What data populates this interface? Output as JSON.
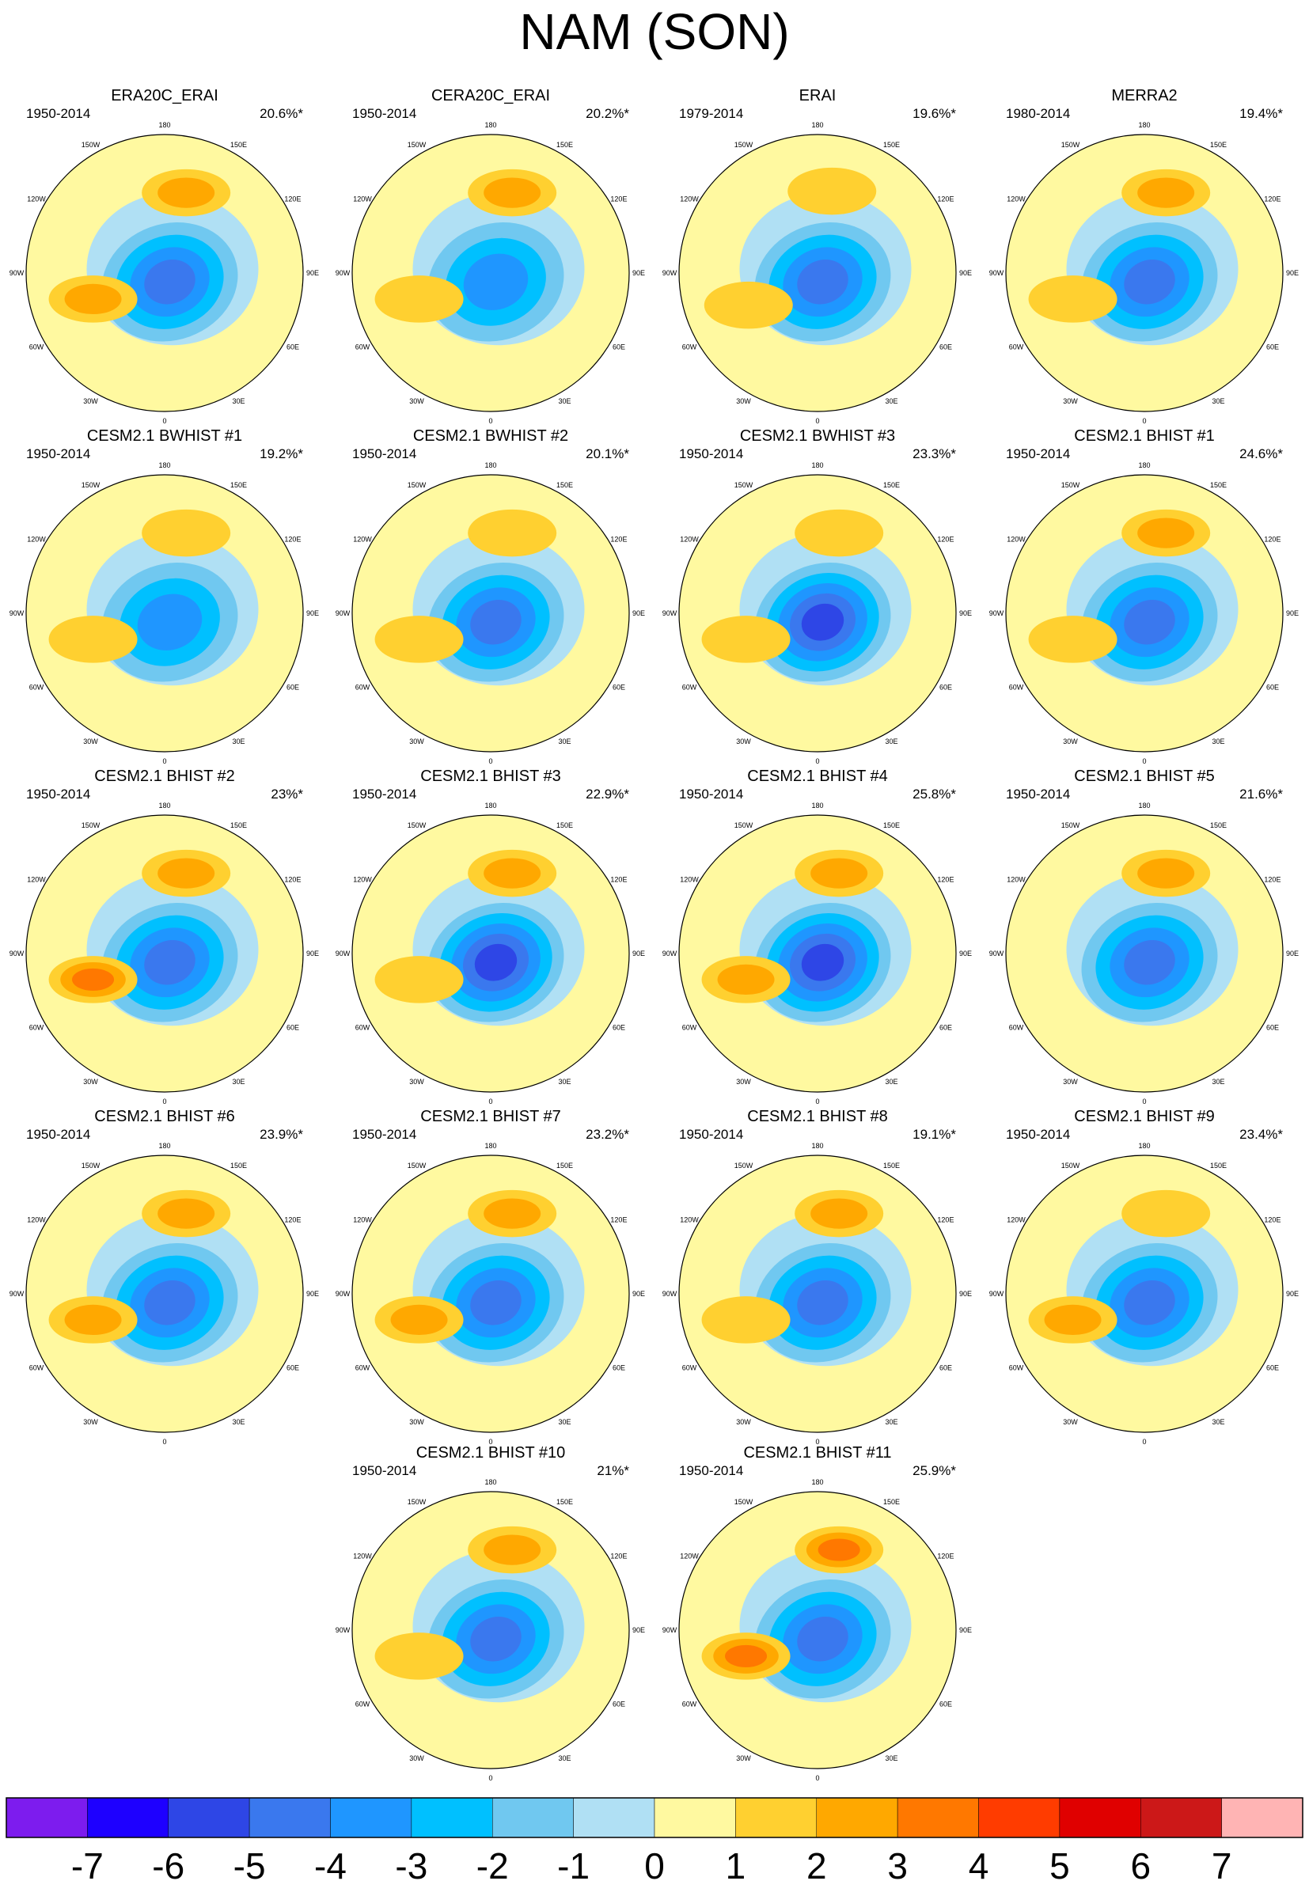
{
  "title": "NAM (SON)",
  "chart_data": {
    "type": "polar-contour-panels",
    "title": "NAM (SON)",
    "longitude_labels": [
      "180",
      "150E",
      "120E",
      "90E",
      "60E",
      "30E",
      "0",
      "30W",
      "60W",
      "90W",
      "120W",
      "150W"
    ],
    "panels": [
      {
        "name": "ERA20C_ERAI",
        "period": "1950-2014",
        "variance": "20.6%*",
        "centers": [
          {
            "lon": 150,
            "r": 0.62,
            "v": -4
          },
          {
            "lon": -110,
            "r": 0.55,
            "v": 2
          },
          {
            "lon": 15,
            "r": 0.6,
            "v": 2
          }
        ]
      },
      {
        "name": "CERA20C_ERAI",
        "period": "1950-2014",
        "variance": "20.2%*",
        "centers": [
          {
            "lon": 150,
            "r": 0.62,
            "v": -3
          },
          {
            "lon": -110,
            "r": 0.55,
            "v": 1
          },
          {
            "lon": 15,
            "r": 0.6,
            "v": 2
          }
        ]
      },
      {
        "name": "ERAI",
        "period": "1979-2014",
        "variance": "19.6%*",
        "centers": [
          {
            "lon": 150,
            "r": 0.62,
            "v": -4
          },
          {
            "lon": -115,
            "r": 0.55,
            "v": 1
          },
          {
            "lon": 10,
            "r": 0.6,
            "v": 1
          }
        ]
      },
      {
        "name": "MERRA2",
        "period": "1980-2014",
        "variance": "19.4%*",
        "centers": [
          {
            "lon": 150,
            "r": 0.62,
            "v": -4
          },
          {
            "lon": -110,
            "r": 0.55,
            "v": 1
          },
          {
            "lon": 15,
            "r": 0.6,
            "v": 2
          }
        ]
      },
      {
        "name": "CESM2.1 BWHIST #1",
        "period": "1950-2014",
        "variance": "19.2%*",
        "centers": [
          {
            "lon": 150,
            "r": 0.62,
            "v": -3
          },
          {
            "lon": -110,
            "r": 0.55,
            "v": 1
          },
          {
            "lon": 15,
            "r": 0.6,
            "v": 1
          }
        ]
      },
      {
        "name": "CESM2.1 BWHIST #2",
        "period": "1950-2014",
        "variance": "20.1%*",
        "centers": [
          {
            "lon": 150,
            "r": 0.62,
            "v": -4
          },
          {
            "lon": -110,
            "r": 0.55,
            "v": 1
          },
          {
            "lon": 15,
            "r": 0.6,
            "v": 1
          }
        ]
      },
      {
        "name": "CESM2.1 BWHIST #3",
        "period": "1950-2014",
        "variance": "23.3%*",
        "centers": [
          {
            "lon": 150,
            "r": 0.62,
            "v": -5
          },
          {
            "lon": -110,
            "r": 0.55,
            "v": 1
          },
          {
            "lon": 15,
            "r": 0.6,
            "v": 1
          }
        ]
      },
      {
        "name": "CESM2.1 BHIST #1",
        "period": "1950-2014",
        "variance": "24.6%*",
        "centers": [
          {
            "lon": 150,
            "r": 0.62,
            "v": -4
          },
          {
            "lon": -110,
            "r": 0.55,
            "v": 1
          },
          {
            "lon": 15,
            "r": 0.6,
            "v": 2
          }
        ]
      },
      {
        "name": "CESM2.1 BHIST #2",
        "period": "1950-2014",
        "variance": "23%*",
        "centers": [
          {
            "lon": 150,
            "r": 0.62,
            "v": -4
          },
          {
            "lon": -110,
            "r": 0.55,
            "v": 3
          },
          {
            "lon": 15,
            "r": 0.6,
            "v": 2
          }
        ]
      },
      {
        "name": "CESM2.1 BHIST #3",
        "period": "1950-2014",
        "variance": "22.9%*",
        "centers": [
          {
            "lon": 150,
            "r": 0.62,
            "v": -5
          },
          {
            "lon": -110,
            "r": 0.55,
            "v": 1
          },
          {
            "lon": 15,
            "r": 0.6,
            "v": 2
          }
        ]
      },
      {
        "name": "CESM2.1 BHIST #4",
        "period": "1950-2014",
        "variance": "25.8%*",
        "centers": [
          {
            "lon": 150,
            "r": 0.62,
            "v": -5
          },
          {
            "lon": -110,
            "r": 0.55,
            "v": 2
          },
          {
            "lon": 15,
            "r": 0.6,
            "v": 2
          }
        ]
      },
      {
        "name": "CESM2.1 BHIST #5",
        "period": "1950-2014",
        "variance": "21.6%*",
        "centers": [
          {
            "lon": 150,
            "r": 0.62,
            "v": -4
          },
          {
            "lon": -110,
            "r": 0.55,
            "v": 0
          },
          {
            "lon": 15,
            "r": 0.6,
            "v": 2
          }
        ]
      },
      {
        "name": "CESM2.1 BHIST #6",
        "period": "1950-2014",
        "variance": "23.9%*",
        "centers": [
          {
            "lon": 150,
            "r": 0.62,
            "v": -4
          },
          {
            "lon": -110,
            "r": 0.55,
            "v": 2
          },
          {
            "lon": 15,
            "r": 0.6,
            "v": 2
          }
        ]
      },
      {
        "name": "CESM2.1 BHIST #7",
        "period": "1950-2014",
        "variance": "23.2%*",
        "centers": [
          {
            "lon": 150,
            "r": 0.62,
            "v": -4
          },
          {
            "lon": -110,
            "r": 0.55,
            "v": 2
          },
          {
            "lon": 15,
            "r": 0.6,
            "v": 2
          }
        ]
      },
      {
        "name": "CESM2.1 BHIST #8",
        "period": "1950-2014",
        "variance": "19.1%*",
        "centers": [
          {
            "lon": 150,
            "r": 0.62,
            "v": -4
          },
          {
            "lon": -110,
            "r": 0.55,
            "v": 1
          },
          {
            "lon": 15,
            "r": 0.6,
            "v": 2
          }
        ]
      },
      {
        "name": "CESM2.1 BHIST #9",
        "period": "1950-2014",
        "variance": "23.4%*",
        "centers": [
          {
            "lon": 150,
            "r": 0.62,
            "v": -4
          },
          {
            "lon": -110,
            "r": 0.55,
            "v": 2
          },
          {
            "lon": 15,
            "r": 0.6,
            "v": 1
          }
        ]
      },
      {
        "name": "CESM2.1 BHIST #10",
        "period": "1950-2014",
        "variance": "21%*",
        "centers": [
          {
            "lon": 150,
            "r": 0.62,
            "v": -4
          },
          {
            "lon": -110,
            "r": 0.55,
            "v": 1
          },
          {
            "lon": 15,
            "r": 0.6,
            "v": 2
          }
        ]
      },
      {
        "name": "CESM2.1 BHIST #11",
        "period": "1950-2014",
        "variance": "25.9%*",
        "centers": [
          {
            "lon": 150,
            "r": 0.62,
            "v": -4
          },
          {
            "lon": -110,
            "r": 0.55,
            "v": 3
          },
          {
            "lon": 15,
            "r": 0.6,
            "v": 3
          }
        ]
      }
    ],
    "colorbar": {
      "labels": [
        "-7",
        "-6",
        "-5",
        "-4",
        "-3",
        "-2",
        "-1",
        "0",
        "1",
        "2",
        "3",
        "4",
        "5",
        "6",
        "7"
      ],
      "colors": [
        "#7d1cee",
        "#1e00ff",
        "#2e46e6",
        "#3a78ee",
        "#1f96ff",
        "#00c0ff",
        "#70c8f0",
        "#b0e0f4",
        "#fff9a0",
        "#ffd030",
        "#ffa800",
        "#ff7800",
        "#ff3c00",
        "#e00000",
        "#cc1818",
        "#ffb4b4"
      ]
    }
  }
}
